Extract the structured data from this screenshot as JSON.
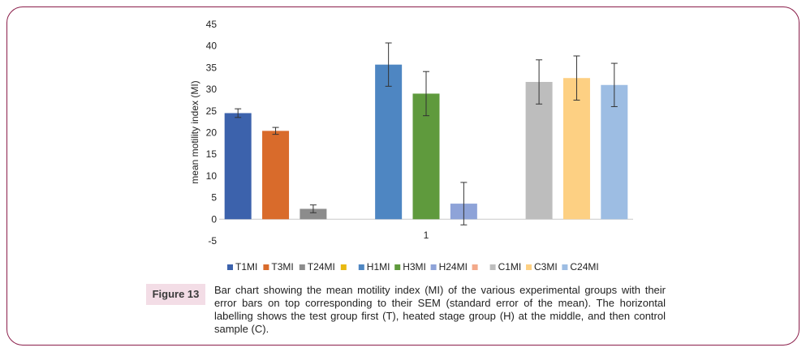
{
  "figure": {
    "label": "Figure 13",
    "caption": "Bar chart showing the mean motility index (MI) of the various experimental groups with their error bars on top corresponding to their SEM (standard error of the mean). The horizontal labelling shows the test group first (T), heated stage group (H) at the middle, and then control sample (C)."
  },
  "chart_data": {
    "type": "bar",
    "title": "",
    "xlabel": "",
    "ylabel": "mean motility index (MI)",
    "categories": [
      "1"
    ],
    "ylim": [
      -5,
      45
    ],
    "yticks": [
      -5,
      0,
      5,
      10,
      15,
      20,
      25,
      30,
      35,
      40,
      45
    ],
    "grid": false,
    "legend_position": "bottom",
    "series": [
      {
        "name": "T1MI",
        "values": [
          24.5
        ],
        "error": [
          1.0
        ],
        "color": "#3c62ac"
      },
      {
        "name": "T3MI",
        "values": [
          20.4
        ],
        "error": [
          0.8
        ],
        "color": "#d96b2b"
      },
      {
        "name": "T24MI",
        "values": [
          2.4
        ],
        "error": [
          0.9
        ],
        "color": "#8c8c8c"
      },
      {
        "name": "",
        "values": [
          null
        ],
        "error": [
          null
        ],
        "color": "#e8b911"
      },
      {
        "name": "H1MI",
        "values": [
          35.7
        ],
        "error": [
          5.0
        ],
        "color": "#4e86c2"
      },
      {
        "name": "H3MI",
        "values": [
          29.0
        ],
        "error": [
          5.1
        ],
        "color": "#5f9a3d"
      },
      {
        "name": "H24MI",
        "values": [
          3.6
        ],
        "error": [
          4.9
        ],
        "color": "#8ea3d8"
      },
      {
        "name": "",
        "values": [
          null
        ],
        "error": [
          null
        ],
        "color": "#f3a98a"
      },
      {
        "name": "C1MI",
        "values": [
          31.7
        ],
        "error": [
          5.1
        ],
        "color": "#bdbdbd"
      },
      {
        "name": "C3MI",
        "values": [
          32.6
        ],
        "error": [
          5.1
        ],
        "color": "#fdd083"
      },
      {
        "name": "C24MI",
        "values": [
          31.0
        ],
        "error": [
          5.0
        ],
        "color": "#9dbde3"
      }
    ]
  }
}
